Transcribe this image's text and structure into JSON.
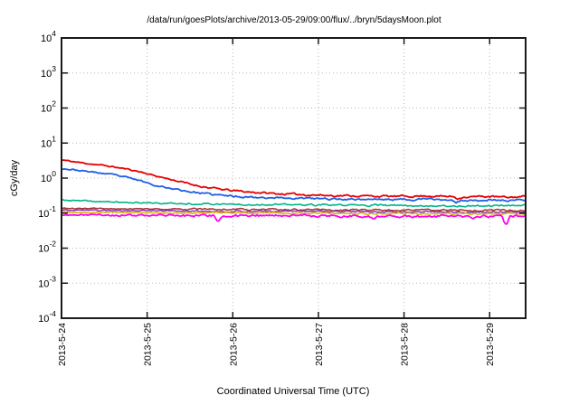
{
  "title": "/data/run/goesPlots/archive/2013-05-29/09:00/flux/../bryn/5daysMoon.plot",
  "chart_data": {
    "type": "line",
    "title": "/data/run/goesPlots/archive/2013-05-29/09:00/flux/../bryn/5daysMoon.plot",
    "xlabel": "Coordinated Universal Time (UTC)",
    "ylabel": "cGy/day",
    "grid": true,
    "legend": "none",
    "x_axis": {
      "unit": "days since 2013-5-24 00:00 UTC",
      "tick_days": [
        0,
        1,
        2,
        3,
        4,
        5
      ],
      "tick_labels": [
        "2013-5-24",
        "2013-5-25",
        "2013-5-26",
        "2013-5-27",
        "2013-5-28",
        "2013-5-29"
      ],
      "range_days": [
        0,
        5.42
      ]
    },
    "y_axis": {
      "scale": "log10",
      "min": 0.0001,
      "max": 10000,
      "tick_exponents": [
        4,
        3,
        2,
        1,
        0,
        -1,
        -2,
        -3,
        -4
      ]
    },
    "series": [
      {
        "name": "red",
        "color": "#e60000",
        "width": 1.8,
        "noise_log": 0.022,
        "seed": 11,
        "points": [
          [
            0,
            3.3
          ],
          [
            0.2,
            2.8
          ],
          [
            0.4,
            2.45
          ],
          [
            0.6,
            2.1
          ],
          [
            0.8,
            1.75
          ],
          [
            0.95,
            1.45
          ],
          [
            1.1,
            1.15
          ],
          [
            1.25,
            0.95
          ],
          [
            1.45,
            0.72
          ],
          [
            1.6,
            0.6
          ],
          [
            1.75,
            0.52
          ],
          [
            1.95,
            0.45
          ],
          [
            2.2,
            0.4
          ],
          [
            2.5,
            0.36
          ],
          [
            2.8,
            0.34
          ],
          [
            3.1,
            0.32
          ],
          [
            3.5,
            0.31
          ],
          [
            3.9,
            0.3
          ],
          [
            4.3,
            0.31
          ],
          [
            4.7,
            0.29
          ],
          [
            5.0,
            0.3
          ],
          [
            5.2,
            0.28
          ],
          [
            5.42,
            0.3
          ]
        ],
        "spikes": [
          [
            4.63,
            0.88
          ]
        ]
      },
      {
        "name": "blue",
        "color": "#1e5fe6",
        "width": 1.8,
        "noise_log": 0.022,
        "seed": 23,
        "points": [
          [
            0,
            1.9
          ],
          [
            0.2,
            1.65
          ],
          [
            0.4,
            1.45
          ],
          [
            0.6,
            1.25
          ],
          [
            0.8,
            1.0
          ],
          [
            0.95,
            0.8
          ],
          [
            1.1,
            0.62
          ],
          [
            1.25,
            0.52
          ],
          [
            1.45,
            0.43
          ],
          [
            1.6,
            0.38
          ],
          [
            1.75,
            0.34
          ],
          [
            1.95,
            0.31
          ],
          [
            2.2,
            0.29
          ],
          [
            2.5,
            0.275
          ],
          [
            2.8,
            0.265
          ],
          [
            3.1,
            0.255
          ],
          [
            3.5,
            0.25
          ],
          [
            3.9,
            0.245
          ],
          [
            4.3,
            0.25
          ],
          [
            4.7,
            0.23
          ],
          [
            5.0,
            0.24
          ],
          [
            5.2,
            0.23
          ],
          [
            5.42,
            0.24
          ]
        ],
        "spikes": [
          [
            4.61,
            0.78
          ]
        ]
      },
      {
        "name": "green",
        "color": "#00b386",
        "width": 1.6,
        "noise_log": 0.02,
        "seed": 37,
        "points": [
          [
            0,
            0.235
          ],
          [
            0.4,
            0.215
          ],
          [
            0.8,
            0.2
          ],
          [
            1.2,
            0.19
          ],
          [
            1.6,
            0.185
          ],
          [
            2.0,
            0.18
          ],
          [
            2.5,
            0.175
          ],
          [
            3.0,
            0.17
          ],
          [
            3.5,
            0.168
          ],
          [
            4.0,
            0.165
          ],
          [
            4.5,
            0.16
          ],
          [
            5.0,
            0.163
          ],
          [
            5.42,
            0.17
          ]
        ],
        "spikes": []
      },
      {
        "name": "dark-red",
        "color": "#a83232",
        "width": 1.5,
        "noise_log": 0.02,
        "seed": 49,
        "points": [
          [
            0,
            0.138
          ],
          [
            0.8,
            0.132
          ],
          [
            1.6,
            0.128
          ],
          [
            2.4,
            0.126
          ],
          [
            3.2,
            0.124
          ],
          [
            4.0,
            0.122
          ],
          [
            4.8,
            0.12
          ],
          [
            5.42,
            0.122
          ]
        ],
        "spikes": []
      },
      {
        "name": "purple",
        "color": "#8833bb",
        "width": 1.5,
        "noise_log": 0.02,
        "seed": 61,
        "points": [
          [
            0,
            0.122
          ],
          [
            0.8,
            0.117
          ],
          [
            1.6,
            0.114
          ],
          [
            2.4,
            0.112
          ],
          [
            3.2,
            0.11
          ],
          [
            4.0,
            0.109
          ],
          [
            4.8,
            0.106
          ],
          [
            5.42,
            0.108
          ]
        ],
        "spikes": []
      },
      {
        "name": "yellow",
        "color": "#d9b800",
        "width": 1.5,
        "noise_log": 0.018,
        "seed": 73,
        "points": [
          [
            0,
            0.107
          ],
          [
            0.8,
            0.103
          ],
          [
            1.6,
            0.101
          ],
          [
            2.4,
            0.1
          ],
          [
            3.2,
            0.098
          ],
          [
            4.0,
            0.097
          ],
          [
            4.8,
            0.095
          ],
          [
            5.42,
            0.097
          ]
        ],
        "spikes": []
      },
      {
        "name": "magenta",
        "color": "#ff00f0",
        "width": 1.8,
        "noise_log": 0.03,
        "seed": 87,
        "points": [
          [
            0,
            0.09
          ],
          [
            0.8,
            0.087
          ],
          [
            1.6,
            0.085
          ],
          [
            2.4,
            0.084
          ],
          [
            3.2,
            0.083
          ],
          [
            4.0,
            0.082
          ],
          [
            4.8,
            0.08
          ],
          [
            5.42,
            0.082
          ]
        ],
        "spikes": [
          [
            1.83,
            0.72
          ],
          [
            3.64,
            0.78
          ],
          [
            4.8,
            0.82
          ],
          [
            5.19,
            0.55
          ]
        ]
      }
    ],
    "plot_style": {
      "border_color": "#1a1a1a",
      "grid_color": "#b8b8b8",
      "background": "#ffffff"
    }
  }
}
